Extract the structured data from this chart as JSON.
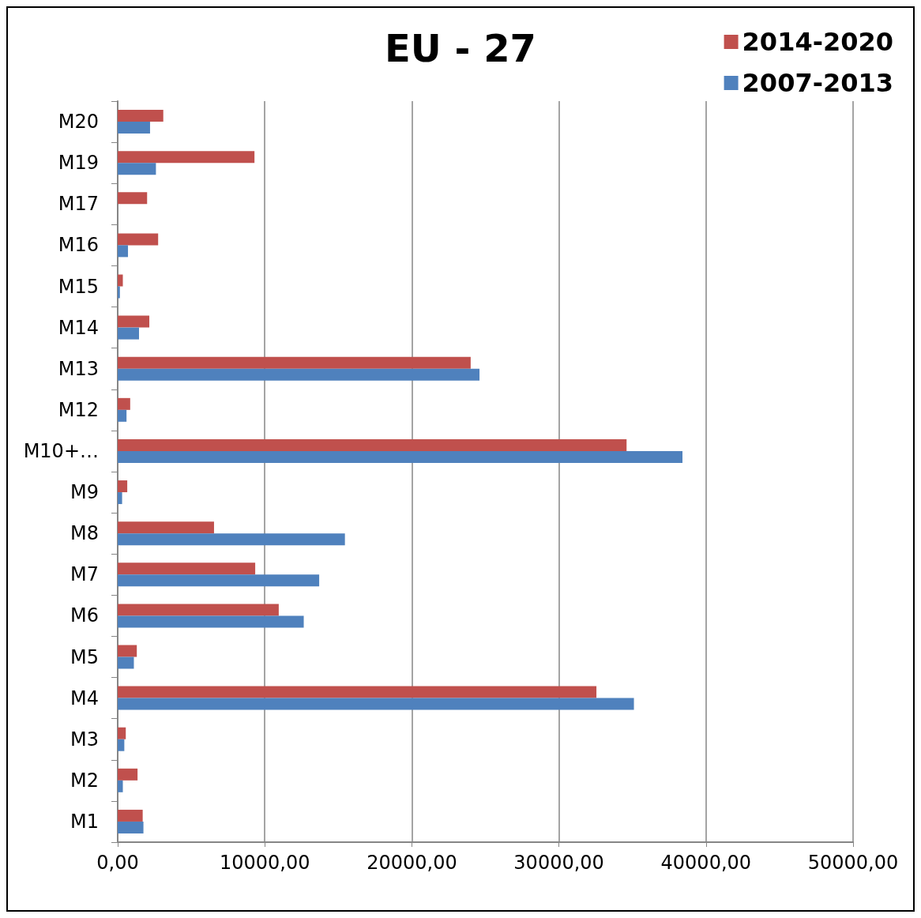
{
  "chart_data": {
    "type": "bar",
    "orientation": "horizontal",
    "title": "EU - 27",
    "categories": [
      "M20",
      "M19",
      "M17",
      "M16",
      "M15",
      "M14",
      "M13",
      "M12",
      "M10+…",
      "M9",
      "M8",
      "M7",
      "M6",
      "M5",
      "M4",
      "M3",
      "M2",
      "M1"
    ],
    "series": [
      {
        "name": "2014-2020",
        "color": "#c0504d",
        "values": [
          3100,
          9300,
          2000,
          2750,
          350,
          2150,
          24000,
          850,
          34600,
          650,
          6550,
          9350,
          10950,
          1300,
          32550,
          550,
          1350,
          1700
        ]
      },
      {
        "name": "2007-2013",
        "color": "#4f81bd",
        "values": [
          2200,
          2600,
          0,
          700,
          150,
          1450,
          24600,
          600,
          38400,
          300,
          15450,
          13700,
          12650,
          1100,
          35100,
          450,
          350,
          1750
        ]
      }
    ],
    "xlim": [
      0,
      50000
    ],
    "xticks": [
      {
        "value": 0,
        "label": "0,00"
      },
      {
        "value": 10000,
        "label": "10000,00"
      },
      {
        "value": 20000,
        "label": "20000,00"
      },
      {
        "value": 30000,
        "label": "30000,00"
      },
      {
        "value": 40000,
        "label": "40000,00"
      },
      {
        "value": 50000,
        "label": "50000,00"
      }
    ],
    "grid": "x",
    "legend": "top right"
  }
}
